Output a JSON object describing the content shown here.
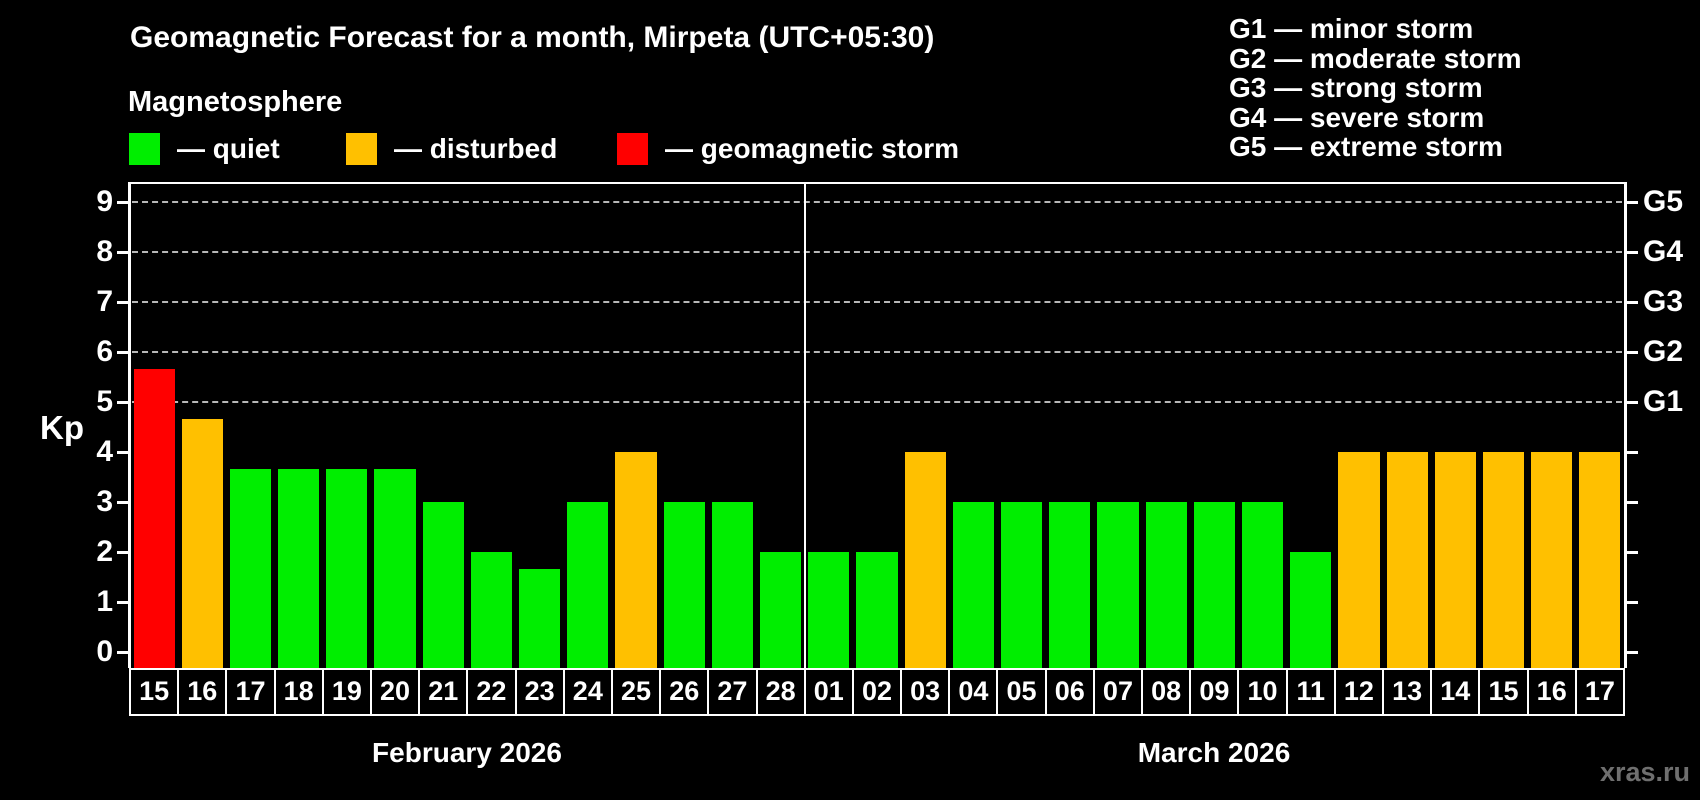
{
  "title": "Geomagnetic Forecast for a month, Mirpeta (UTC+05:30)",
  "subtitle": "Magnetosphere",
  "legend": {
    "items": [
      {
        "key": "quiet",
        "label": "— quiet",
        "color": "#00ee00"
      },
      {
        "key": "disturbed",
        "label": "— disturbed",
        "color": "#ffc000"
      },
      {
        "key": "storm",
        "label": "— geomagnetic storm",
        "color": "#ff0000"
      }
    ]
  },
  "g_legend": [
    "G1 — minor storm",
    "G2 — moderate storm",
    "G3 — strong storm",
    "G4 — severe storm",
    "G5 — extreme storm"
  ],
  "watermark": "xras.ru",
  "chart_data": {
    "type": "bar",
    "ylabel": "Kp",
    "ylim": [
      0,
      9.4
    ],
    "yticks": [
      0,
      1,
      2,
      3,
      4,
      5,
      6,
      7,
      8,
      9
    ],
    "gridlines_at": [
      5,
      6,
      7,
      8,
      9
    ],
    "grid": "horizontal dashed lines only at G-storm levels (Kp 5-9)",
    "legend_position": "top-left swatches; G-scale legend top-right",
    "right_axis_labels": [
      {
        "value": 5,
        "label": "G1"
      },
      {
        "value": 6,
        "label": "G2"
      },
      {
        "value": 7,
        "label": "G3"
      },
      {
        "value": 8,
        "label": "G4"
      },
      {
        "value": 9,
        "label": "G5"
      }
    ],
    "status_colors": {
      "quiet": "#00ee00",
      "disturbed": "#ffc000",
      "storm": "#ff0000"
    },
    "months": [
      {
        "label": "February 2026",
        "days": [
          {
            "day": "15",
            "kp": 5.67,
            "status": "storm"
          },
          {
            "day": "16",
            "kp": 4.67,
            "status": "disturbed"
          },
          {
            "day": "17",
            "kp": 3.67,
            "status": "quiet"
          },
          {
            "day": "18",
            "kp": 3.67,
            "status": "quiet"
          },
          {
            "day": "19",
            "kp": 3.67,
            "status": "quiet"
          },
          {
            "day": "20",
            "kp": 3.67,
            "status": "quiet"
          },
          {
            "day": "21",
            "kp": 3,
            "status": "quiet"
          },
          {
            "day": "22",
            "kp": 2,
            "status": "quiet"
          },
          {
            "day": "23",
            "kp": 1.67,
            "status": "quiet"
          },
          {
            "day": "24",
            "kp": 3,
            "status": "quiet"
          },
          {
            "day": "25",
            "kp": 4,
            "status": "disturbed"
          },
          {
            "day": "26",
            "kp": 3,
            "status": "quiet"
          },
          {
            "day": "27",
            "kp": 3,
            "status": "quiet"
          },
          {
            "day": "28",
            "kp": 2,
            "status": "quiet"
          }
        ]
      },
      {
        "label": "March 2026",
        "days": [
          {
            "day": "01",
            "kp": 2,
            "status": "quiet"
          },
          {
            "day": "02",
            "kp": 2,
            "status": "quiet"
          },
          {
            "day": "03",
            "kp": 4,
            "status": "disturbed"
          },
          {
            "day": "04",
            "kp": 3,
            "status": "quiet"
          },
          {
            "day": "05",
            "kp": 3,
            "status": "quiet"
          },
          {
            "day": "06",
            "kp": 3,
            "status": "quiet"
          },
          {
            "day": "07",
            "kp": 3,
            "status": "quiet"
          },
          {
            "day": "08",
            "kp": 3,
            "status": "quiet"
          },
          {
            "day": "09",
            "kp": 3,
            "status": "quiet"
          },
          {
            "day": "10",
            "kp": 3,
            "status": "quiet"
          },
          {
            "day": "11",
            "kp": 2,
            "status": "quiet"
          },
          {
            "day": "12",
            "kp": 4,
            "status": "disturbed"
          },
          {
            "day": "13",
            "kp": 4,
            "status": "disturbed"
          },
          {
            "day": "14",
            "kp": 4,
            "status": "disturbed"
          },
          {
            "day": "15",
            "kp": 4,
            "status": "disturbed"
          },
          {
            "day": "16",
            "kp": 4,
            "status": "disturbed"
          },
          {
            "day": "17",
            "kp": 4,
            "status": "disturbed"
          }
        ]
      }
    ]
  }
}
